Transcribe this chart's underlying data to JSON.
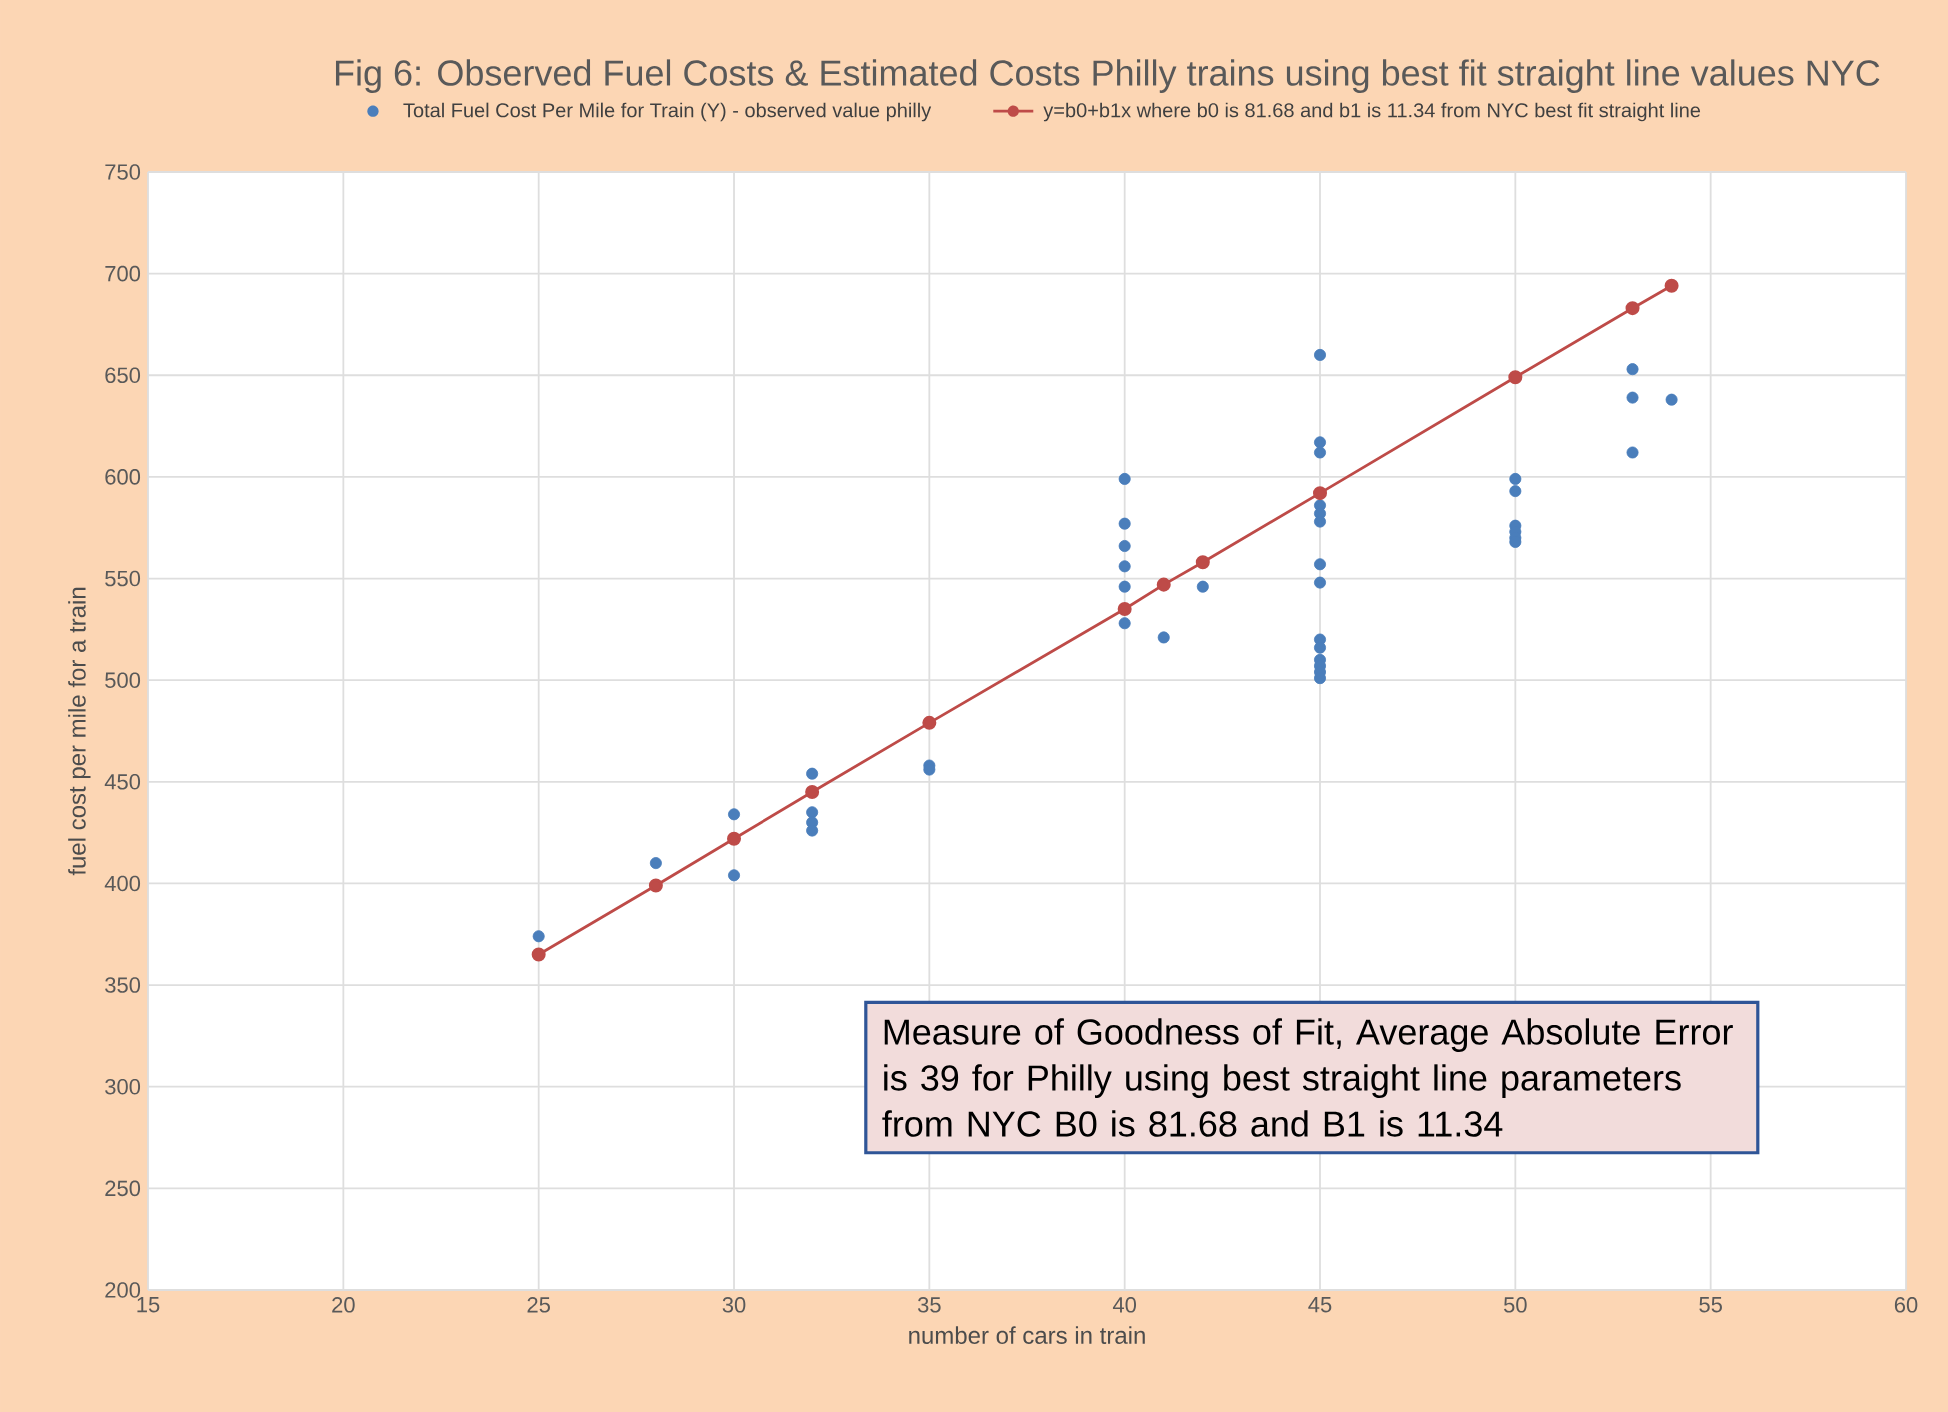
{
  "chart_data": {
    "type": "scatter",
    "title": "Fig 6: Observed Fuel Costs & Estimated Costs Philly trains using best fit straight line values NYC",
    "xlabel": "number of cars in train",
    "ylabel": "fuel cost per mile for a train",
    "xlim": [
      15,
      60
    ],
    "xticks": [
      15,
      20,
      25,
      30,
      35,
      40,
      45,
      50,
      55,
      60
    ],
    "ylim": [
      200,
      750
    ],
    "yticks": [
      200,
      250,
      300,
      350,
      400,
      450,
      500,
      550,
      600,
      650,
      700,
      750
    ],
    "grid": true,
    "legend": "top",
    "marker": "circle",
    "annotations": [
      "Measure of Goodness of Fit, Average Absolute Error is 39 for Philly using best straight line parameters from NYC B0 is 81.68 and B1 is 11.34"
    ],
    "series": [
      {
        "name": "Total Fuel Cost Per Mile for Train (Y) - observed value philly",
        "color": "#4a7ebb",
        "x": [
          25,
          28,
          30,
          30,
          32,
          32,
          32,
          32,
          35,
          35,
          40,
          40,
          40,
          40,
          40,
          40,
          41,
          42,
          45,
          45,
          45,
          45,
          45,
          45,
          45,
          45,
          45,
          45,
          45,
          45,
          45,
          45,
          50,
          50,
          50,
          50,
          50,
          50,
          53,
          53,
          53,
          54
        ],
        "values": [
          374,
          410,
          434,
          404,
          454,
          435,
          430,
          426,
          458,
          456,
          599,
          577,
          566,
          556,
          546,
          528,
          521,
          546,
          660,
          617,
          612,
          586,
          582,
          578,
          557,
          548,
          520,
          516,
          510,
          507,
          504,
          501,
          599,
          593,
          576,
          573,
          570,
          568,
          653,
          639,
          612,
          638
        ]
      },
      {
        "name": "y=b0+b1x where b0 is 81.68 and b1 is 11.34 from NYC best fit straight line",
        "type": "line",
        "color": "#be4b48",
        "x": [
          25,
          28,
          30,
          32,
          35,
          40,
          41,
          42,
          45,
          50,
          53,
          54
        ],
        "values": [
          365,
          399,
          422,
          445,
          479,
          535,
          547,
          558,
          592,
          649,
          683,
          694
        ]
      }
    ]
  }
}
